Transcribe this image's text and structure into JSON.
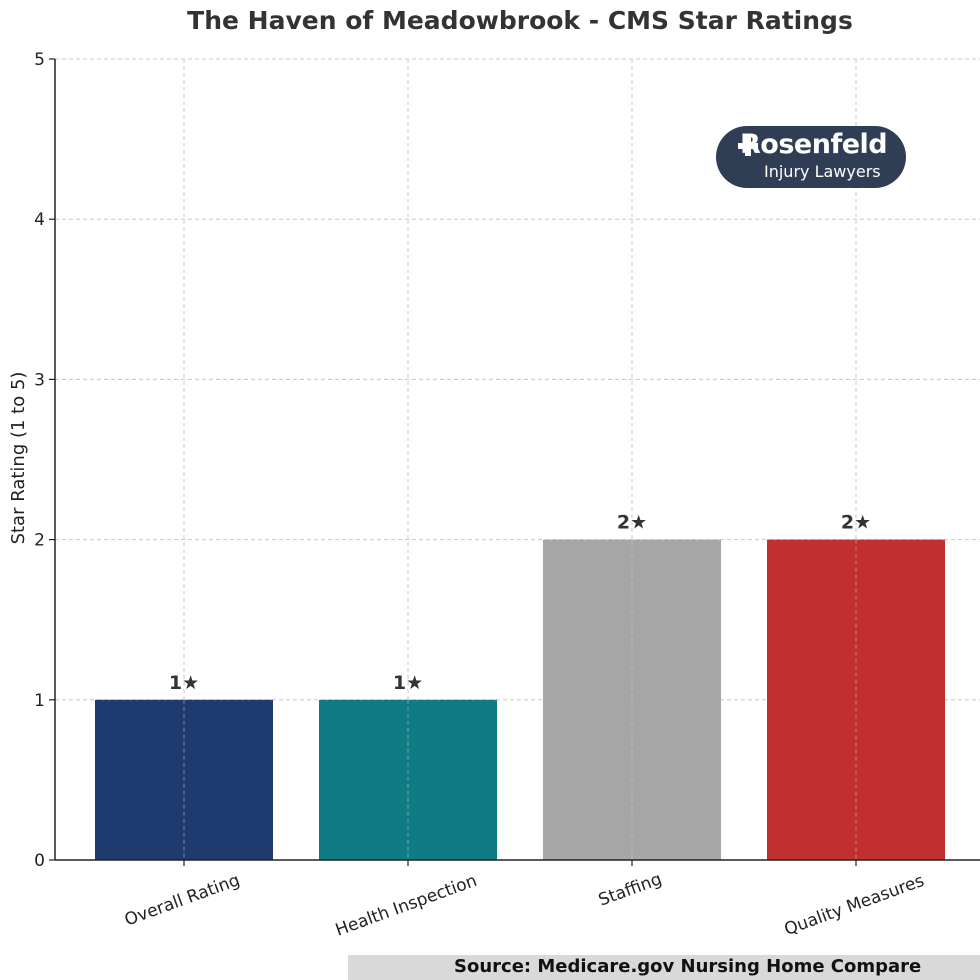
{
  "chart_data": {
    "type": "bar",
    "title": "The Haven of Meadowbrook - CMS Star Ratings",
    "xlabel": "",
    "ylabel": "Star Rating (1 to 5)",
    "ylim": [
      0,
      5
    ],
    "yticks": [
      "0",
      "1",
      "2",
      "3",
      "4",
      "5"
    ],
    "grid": true,
    "categories": [
      "Overall Rating",
      "Health Inspection",
      "Staffing",
      "Quality Measures"
    ],
    "values": [
      1,
      1,
      2,
      2
    ],
    "data_labels": [
      "1★",
      "1★",
      "2★",
      "2★"
    ],
    "colors": [
      "#1f3a6e",
      "#0f7b83",
      "#a6a6a6",
      "#c12f2f"
    ]
  },
  "logo": {
    "name": "Rosenfeld",
    "tagline": "Injury Lawyers"
  },
  "source_note": "Source: Medicare.gov Nursing Home Compare"
}
